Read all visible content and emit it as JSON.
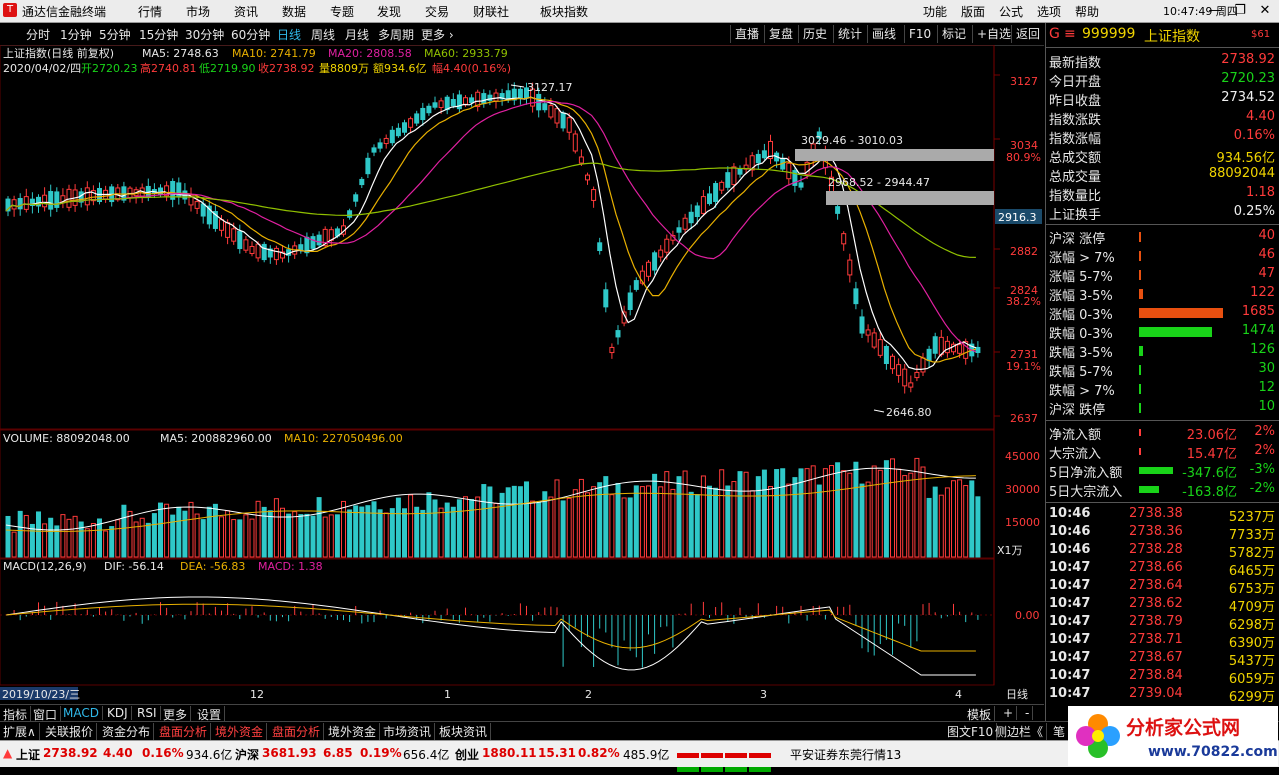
{
  "app": {
    "title": "通达信金融终端",
    "menu": [
      "行情",
      "市场",
      "资讯",
      "数据",
      "专题",
      "发现",
      "交易",
      "财联社",
      "板块指数"
    ],
    "right_menu": [
      "功能",
      "版面",
      "公式",
      "选项",
      "帮助"
    ],
    "clock": "10:47:49",
    "weekday": "周四"
  },
  "toolbar": {
    "periods": [
      "分时",
      "1分钟",
      "5分钟",
      "15分钟",
      "30分钟",
      "60分钟",
      "日线",
      "周线",
      "月线",
      "多周期",
      "更多"
    ],
    "active_period": "日线",
    "buttons": [
      "直播",
      "复盘",
      "历史",
      "统计",
      "画线",
      "F10",
      "标记",
      "+自选",
      "返回"
    ]
  },
  "chart": {
    "name": "上证指数(日线 前复权)",
    "ma5": "MA5: 2748.63",
    "ma10": "MA10: 2741.79",
    "ma20": "MA20: 2808.58",
    "ma60": "MA60: 2933.79",
    "date": "2020/04/02/四",
    "open": "开2720.23",
    "high": "高2740.81",
    "low": "低2719.90",
    "close": "收2738.92",
    "vol": "量8809万",
    "amount": "额934.6亿",
    "change": "幅4.40(0.16%)",
    "annotations": {
      "high_mark": "3127.17",
      "low_mark": "2646.80",
      "gap1": "3029.46 - 3010.03",
      "gap2": "2968.52 - 2944.47"
    },
    "price_axis": [
      "3127",
      "3034",
      "2882",
      "2824",
      "2731",
      "2637"
    ],
    "pct_axis": [
      "80.9%",
      "38.2%",
      "19.1%"
    ],
    "cursor_price": "2916.3",
    "volume_label": "VOLUME: 88092048.00",
    "vol_ma5": "MA5: 200882960.00",
    "vol_ma10": "MA10: 227050496.00",
    "vol_axis": [
      "45000",
      "30000",
      "15000"
    ],
    "vol_unit": "X1万",
    "macd_label": "MACD(12,26,9)",
    "dif": "DIF: -56.14",
    "dea": "DEA: -56.83",
    "macd": "MACD: 1.38",
    "macd_axis": "0.00",
    "x_start": "2019/10/23/三",
    "months": [
      "12",
      "1",
      "2",
      "3",
      "4"
    ],
    "x_right": "日线"
  },
  "chart_data": {
    "type": "candlestick",
    "title": "上证指数(日线 前复权)",
    "ylim": [
      2637,
      3127
    ],
    "series": [
      {
        "name": "MA5",
        "values": [
          2748.63
        ]
      },
      {
        "name": "MA10",
        "values": [
          2741.79
        ]
      },
      {
        "name": "MA20",
        "values": [
          2808.58
        ]
      },
      {
        "name": "MA60",
        "values": [
          2933.79
        ]
      }
    ],
    "last_candle": {
      "date": "2020/04/02",
      "open": 2720.23,
      "high": 2740.81,
      "low": 2719.9,
      "close": 2738.92
    },
    "marked_high": 3127.17,
    "marked_low": 2646.8
  },
  "panel": {
    "code": "999999",
    "name": "上证指数",
    "tag": "$61",
    "rows": [
      {
        "label": "最新指数",
        "value": "2738.92",
        "color": "red"
      },
      {
        "label": "今日开盘",
        "value": "2720.23",
        "color": "green"
      },
      {
        "label": "昨日收盘",
        "value": "2734.52",
        "color": "white"
      },
      {
        "label": "指数涨跌",
        "value": "4.40",
        "color": "red"
      },
      {
        "label": "指数涨幅",
        "value": "0.16%",
        "color": "red"
      },
      {
        "label": "总成交额",
        "value": "934.56亿",
        "color": "yellow"
      },
      {
        "label": "总成交量",
        "value": "88092044",
        "color": "yellow"
      },
      {
        "label": "指数量比",
        "value": "1.18",
        "color": "red"
      },
      {
        "label": "上证换手",
        "value": "0.25%",
        "color": "white"
      }
    ],
    "breadth": [
      {
        "label": "沪深 涨停",
        "value": "40",
        "color": "red",
        "bar": 0
      },
      {
        "label": "涨幅 > 7%",
        "value": "46",
        "color": "red",
        "bar": 0.02
      },
      {
        "label": "涨幅 5-7%",
        "value": "47",
        "color": "red",
        "bar": 0.02
      },
      {
        "label": "涨幅 3-5%",
        "value": "122",
        "color": "red",
        "bar": 0.05
      },
      {
        "label": "涨幅 0-3%",
        "value": "1685",
        "color": "red",
        "bar": 1.0
      },
      {
        "label": "跌幅 0-3%",
        "value": "1474",
        "color": "green",
        "bar": 0.87
      },
      {
        "label": "跌幅 3-5%",
        "value": "126",
        "color": "green",
        "bar": 0.05
      },
      {
        "label": "跌幅 5-7%",
        "value": "30",
        "color": "green",
        "bar": 0
      },
      {
        "label": "跌幅 > 7%",
        "value": "12",
        "color": "green",
        "bar": 0
      },
      {
        "label": "沪深 跌停",
        "value": "10",
        "color": "green",
        "bar": 0
      }
    ],
    "flows": [
      {
        "label": "净流入额",
        "value": "23.06亿",
        "pct": "2%",
        "color": "red"
      },
      {
        "label": "大宗流入",
        "value": "15.47亿",
        "pct": "2%",
        "color": "red"
      },
      {
        "label": "5日净流入额",
        "value": "-347.6亿",
        "pct": "-3%",
        "color": "green"
      },
      {
        "label": "5日大宗流入",
        "value": "-163.8亿",
        "pct": "-2%",
        "color": "green"
      }
    ],
    "ticks": [
      {
        "time": "10:46",
        "price": "2738.38",
        "vol": "5237万"
      },
      {
        "time": "10:46",
        "price": "2738.36",
        "vol": "7733万"
      },
      {
        "time": "10:46",
        "price": "2738.28",
        "vol": "5782万"
      },
      {
        "time": "10:47",
        "price": "2738.66",
        "vol": "6465万"
      },
      {
        "time": "10:47",
        "price": "2738.64",
        "vol": "6753万"
      },
      {
        "time": "10:47",
        "price": "2738.62",
        "vol": "4709万"
      },
      {
        "time": "10:47",
        "price": "2738.79",
        "vol": "6298万"
      },
      {
        "time": "10:47",
        "price": "2738.71",
        "vol": "6390万"
      },
      {
        "time": "10:47",
        "price": "2738.67",
        "vol": "5437万"
      },
      {
        "time": "10:47",
        "price": "2738.84",
        "vol": "6059万"
      },
      {
        "time": "10:47",
        "price": "2739.04",
        "vol": "6299万"
      }
    ]
  },
  "tabs1": [
    "指标",
    "窗口",
    "MACD",
    "KDJ",
    "RSI",
    "更多",
    "设置"
  ],
  "tabs1_right": [
    "模板",
    "+",
    "-"
  ],
  "tabs2": [
    "扩展∧",
    "关联报价",
    "资金分布",
    "盘面分析",
    "境外资金",
    "盘面分析",
    "境外资金",
    "市场资讯",
    "板块资讯"
  ],
  "tabs2_right": [
    "图文F10",
    "侧边栏《",
    "笔"
  ],
  "status": {
    "sh": {
      "name": "上证",
      "price": "2738.92",
      "chg": "4.40",
      "pct": "0.16%",
      "amt": "934.6亿"
    },
    "hs": {
      "name": "沪深",
      "price": "3681.93",
      "chg": "6.85",
      "pct": "0.19%",
      "amt": "656.4亿"
    },
    "cy": {
      "name": "创业",
      "price": "1880.11",
      "chg": "15.31",
      "pct": "0.82%",
      "amt": "485.9亿"
    },
    "broker": "平安证券东莞行情13"
  },
  "watermark": {
    "text": "分析家公式网",
    "url": "www.70822.com"
  }
}
